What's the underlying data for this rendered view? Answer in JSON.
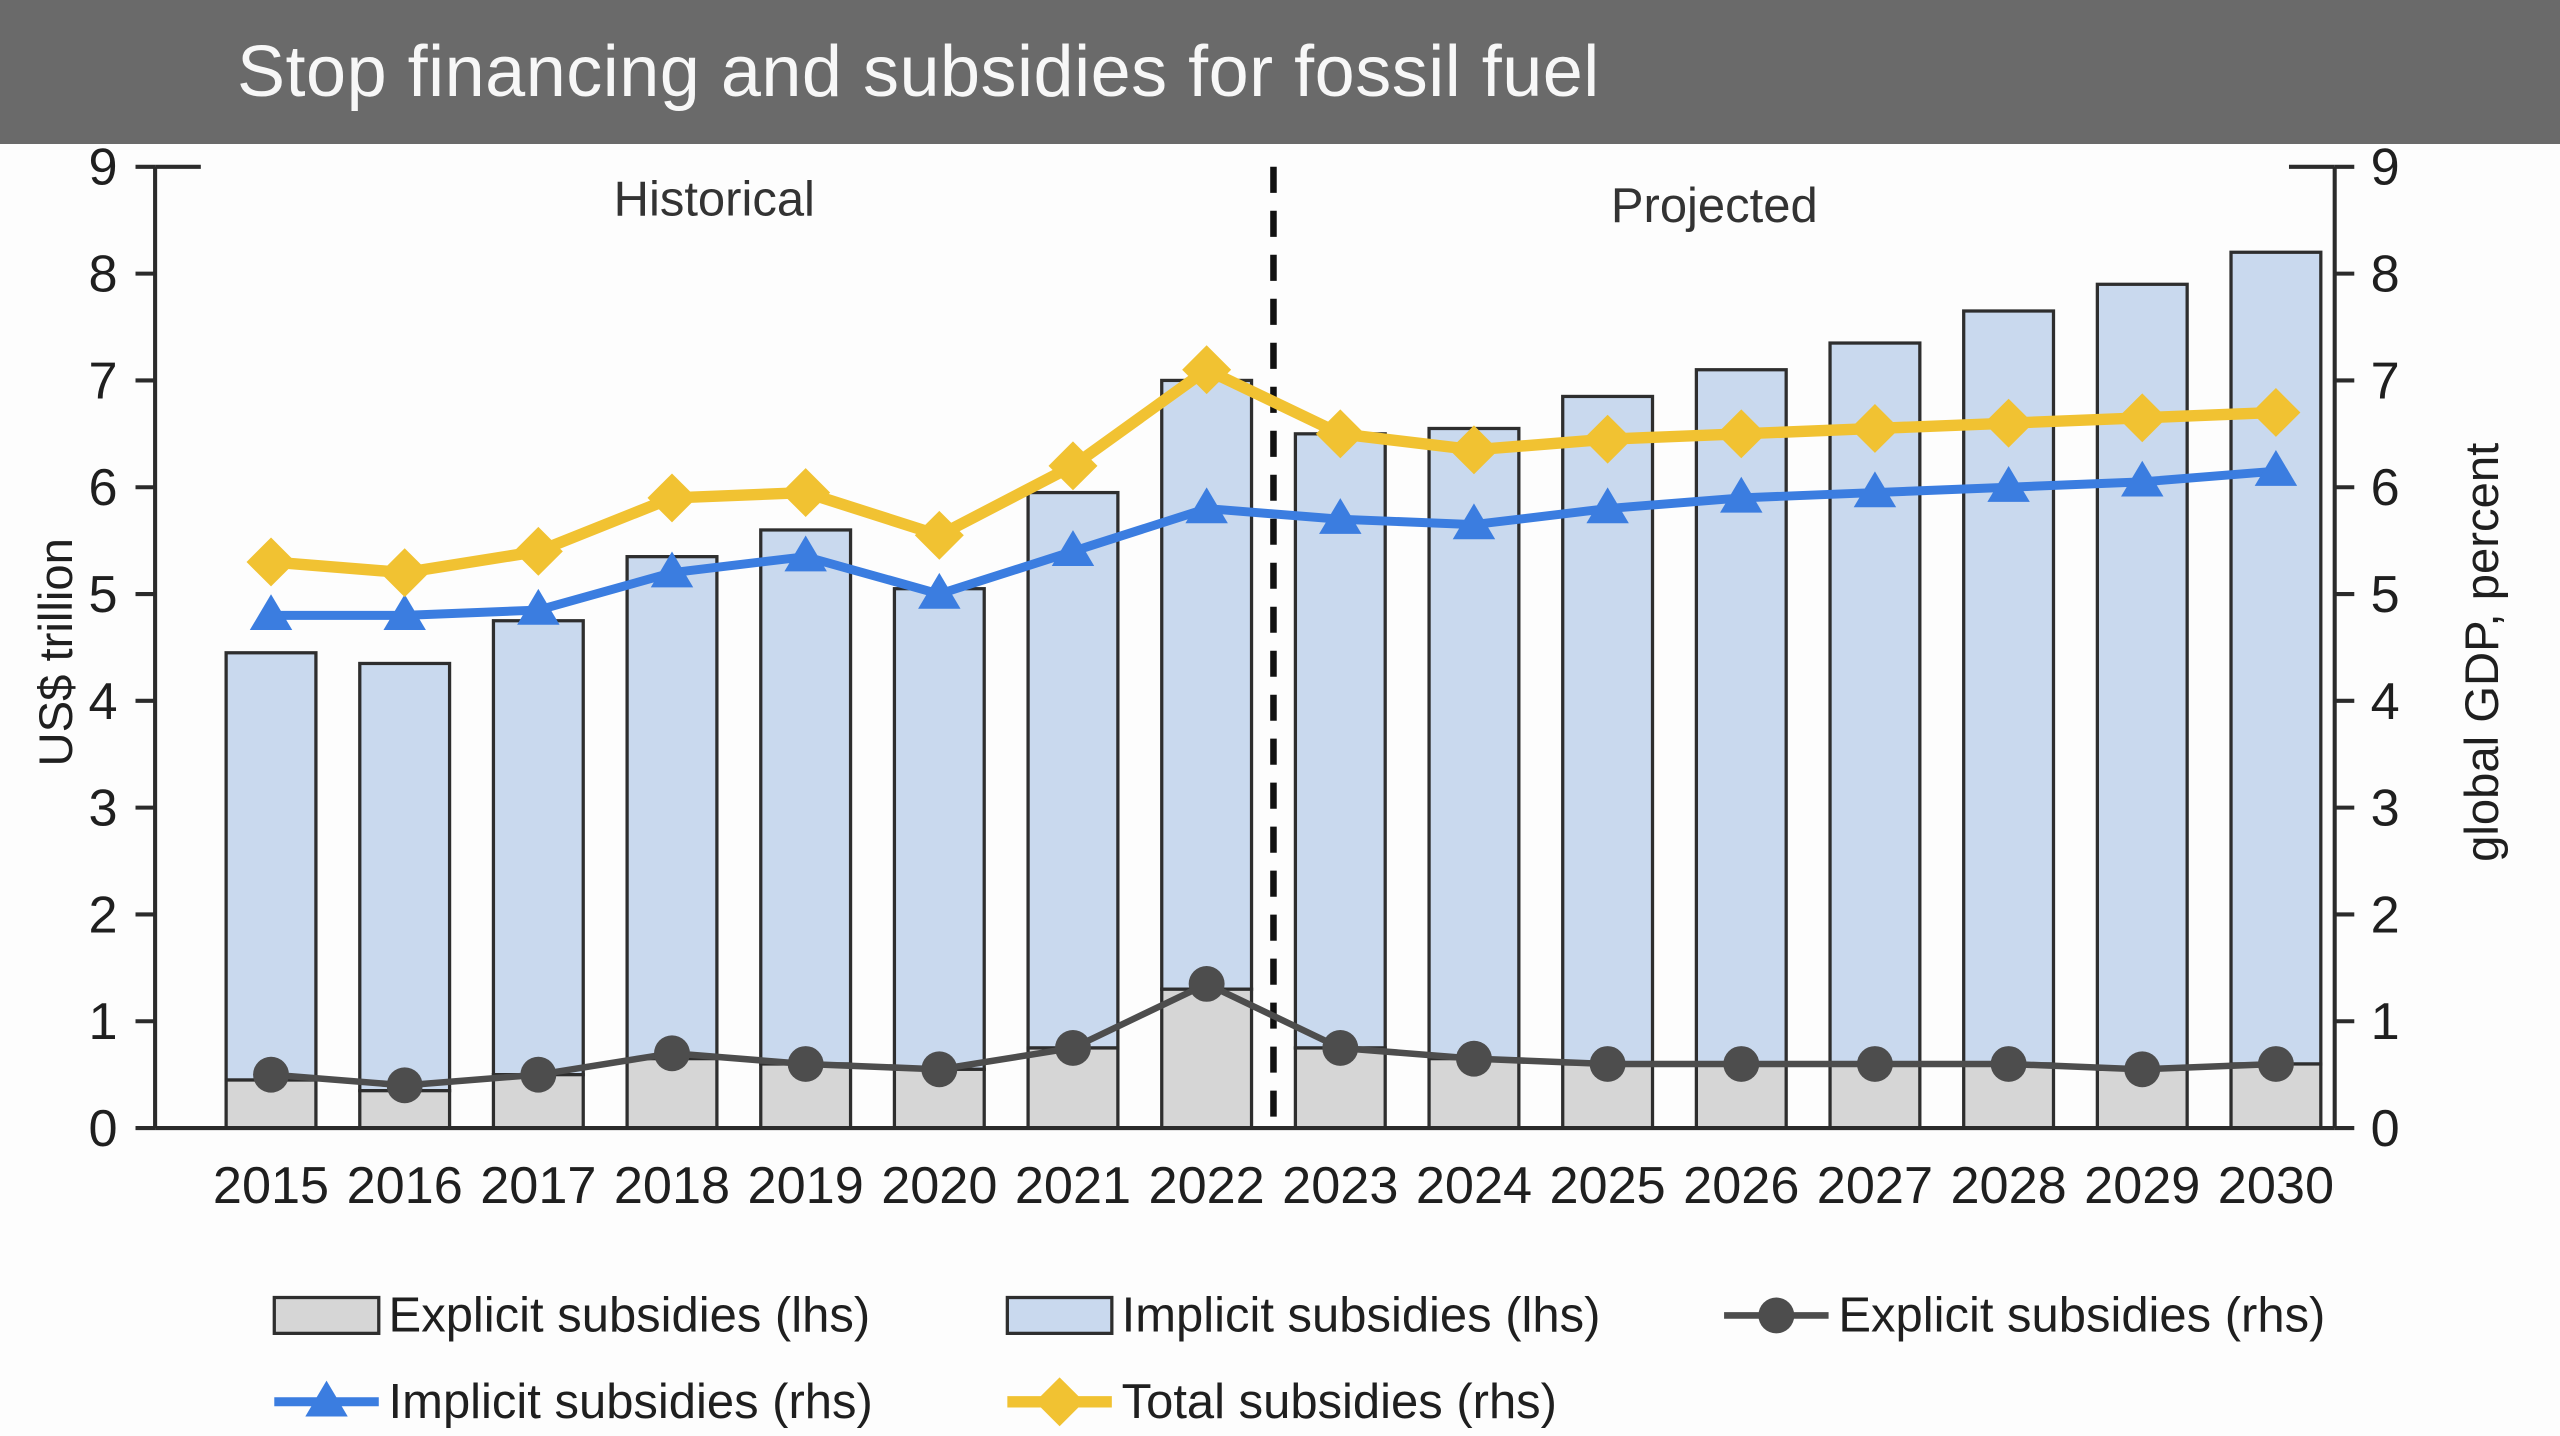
{
  "header": {
    "title": "Stop financing and subsidies for fossil fuel",
    "background": "#6a6a6a",
    "text_color": "#f7f7f7"
  },
  "chart_data": {
    "type": "bar",
    "subtype": "stacked-bars-with-lines",
    "categories": [
      2015,
      2016,
      2017,
      2018,
      2019,
      2020,
      2021,
      2022,
      2023,
      2024,
      2025,
      2026,
      2027,
      2028,
      2029,
      2030
    ],
    "left_axis": {
      "label": "US$ trillion",
      "min": 0,
      "max": 9,
      "tick_step": 1
    },
    "right_axis": {
      "label": "global GDP, percent",
      "min": 0,
      "max": 9,
      "tick_step": 1
    },
    "divider_after_category": 2022,
    "annotations": [
      {
        "id": "historical",
        "text": "Historical"
      },
      {
        "id": "projected",
        "text": "Projected"
      }
    ],
    "bar_border": "#2e2e2e",
    "bar_series": [
      {
        "id": "explicit-lhs",
        "name": "Explicit subsidies (lhs)",
        "axis": "left",
        "color": "#d6d6d6",
        "values": [
          0.45,
          0.35,
          0.5,
          0.65,
          0.6,
          0.55,
          0.75,
          1.3,
          0.75,
          0.65,
          0.6,
          0.6,
          0.6,
          0.6,
          0.55,
          0.6
        ]
      },
      {
        "id": "implicit-lhs",
        "name": "Implicit subsidies (lhs)",
        "axis": "left",
        "color": "#c9d9ee",
        "values": [
          4.0,
          4.0,
          4.25,
          4.7,
          5.0,
          4.5,
          5.2,
          5.7,
          5.75,
          5.9,
          6.25,
          6.5,
          6.75,
          7.05,
          7.35,
          7.6
        ]
      }
    ],
    "line_series": [
      {
        "id": "explicit-rhs",
        "name": "Explicit subsidies (rhs)",
        "axis": "right",
        "color": "#4d4d4d",
        "marker": "circle",
        "width": 4,
        "values": [
          0.5,
          0.4,
          0.5,
          0.7,
          0.6,
          0.55,
          0.75,
          1.35,
          0.75,
          0.65,
          0.6,
          0.6,
          0.6,
          0.6,
          0.55,
          0.6
        ]
      },
      {
        "id": "implicit-rhs",
        "name": "Implicit subsidies (rhs)",
        "axis": "right",
        "color": "#3b7de0",
        "marker": "triangle",
        "width": 5.5,
        "values": [
          4.8,
          4.8,
          4.85,
          5.2,
          5.35,
          5.0,
          5.4,
          5.8,
          5.7,
          5.65,
          5.8,
          5.9,
          5.95,
          6.0,
          6.05,
          6.15
        ]
      },
      {
        "id": "total-rhs",
        "name": "Total subsidies (rhs)",
        "axis": "right",
        "color": "#f1c232",
        "marker": "diamond",
        "width": 7,
        "values": [
          5.3,
          5.2,
          5.4,
          5.9,
          5.95,
          5.55,
          6.2,
          7.1,
          6.5,
          6.35,
          6.45,
          6.5,
          6.55,
          6.6,
          6.65,
          6.7
        ]
      }
    ],
    "legend": {
      "rows": [
        [
          {
            "label": "Explicit subsidies (lhs)",
            "marker": "bar",
            "color": "#d6d6d6"
          },
          {
            "label": "Implicit subsidies (lhs)",
            "marker": "bar",
            "color": "#c9d9ee"
          },
          {
            "label": "Explicit subsidies (rhs)",
            "marker": "line-circle",
            "color": "#4d4d4d"
          }
        ],
        [
          {
            "label": "Implicit subsidies (rhs)",
            "marker": "line-triangle",
            "color": "#3b7de0"
          },
          {
            "label": "Total subsidies (rhs)",
            "marker": "line-diamond",
            "color": "#f1c232"
          }
        ]
      ]
    }
  }
}
